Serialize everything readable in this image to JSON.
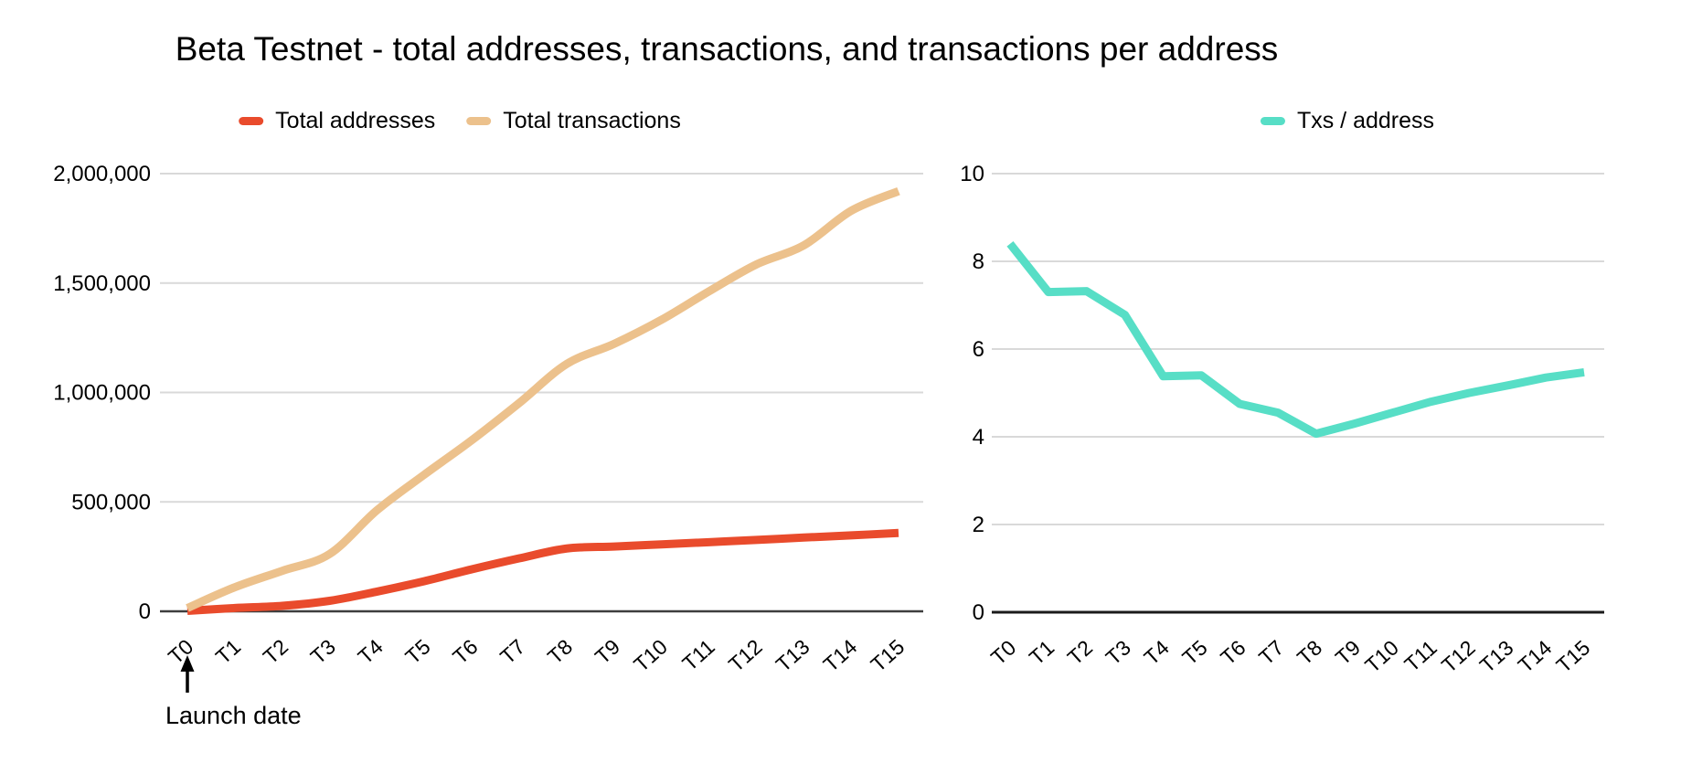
{
  "title": "Beta Testnet - total addresses, transactions, and transactions per address",
  "annotation": {
    "label": "Launch date",
    "points_to": "T0"
  },
  "chart_data": [
    {
      "type": "line",
      "line_style": "smooth",
      "legend_position": "top",
      "grid": true,
      "categories": [
        "T0",
        "T1",
        "T2",
        "T3",
        "T4",
        "T5",
        "T6",
        "T7",
        "T8",
        "T9",
        "T10",
        "T11",
        "T12",
        "T13",
        "T14",
        "T15"
      ],
      "series": [
        {
          "name": "Total addresses",
          "color": "#e94b2c",
          "values": [
            2000,
            15000,
            25000,
            48000,
            90000,
            138000,
            192000,
            242000,
            287000,
            296000,
            306000,
            316000,
            326000,
            337000,
            347000,
            358000
          ]
        },
        {
          "name": "Total transactions",
          "color": "#ecc18c",
          "values": [
            15000,
            110000,
            185000,
            262000,
            462000,
            625000,
            782000,
            952000,
            1130000,
            1222000,
            1332000,
            1462000,
            1585000,
            1672000,
            1830000,
            1920000
          ]
        }
      ],
      "ylim": [
        0,
        2000000
      ],
      "ytick_values": [
        0,
        500000,
        1000000,
        1500000,
        2000000
      ],
      "ytick_labels": [
        "0",
        "500,000",
        "1,000,000",
        "1,500,000",
        "2,000,000"
      ]
    },
    {
      "type": "line",
      "line_style": "straight",
      "legend_position": "top",
      "grid": true,
      "categories": [
        "T0",
        "T1",
        "T2",
        "T3",
        "T4",
        "T5",
        "T6",
        "T7",
        "T8",
        "T9",
        "T10",
        "T11",
        "T12",
        "T13",
        "T14",
        "T15"
      ],
      "series": [
        {
          "name": "Txs / address",
          "color": "#57dec6",
          "values": [
            8.4,
            7.3,
            7.32,
            6.78,
            5.38,
            5.4,
            4.75,
            4.55,
            4.07,
            4.3,
            4.55,
            4.8,
            5.0,
            5.17,
            5.35,
            5.47
          ]
        }
      ],
      "ylim": [
        0,
        10
      ],
      "ytick_values": [
        0,
        2,
        4,
        6,
        8,
        10
      ],
      "ytick_labels": [
        "0",
        "2",
        "4",
        "6",
        "8",
        "10"
      ]
    }
  ],
  "colors": {
    "gridline": "#d9d9d9",
    "axis_left": "#3d3d3d",
    "axis_right": "#1a1a1a",
    "text": "#000000"
  }
}
